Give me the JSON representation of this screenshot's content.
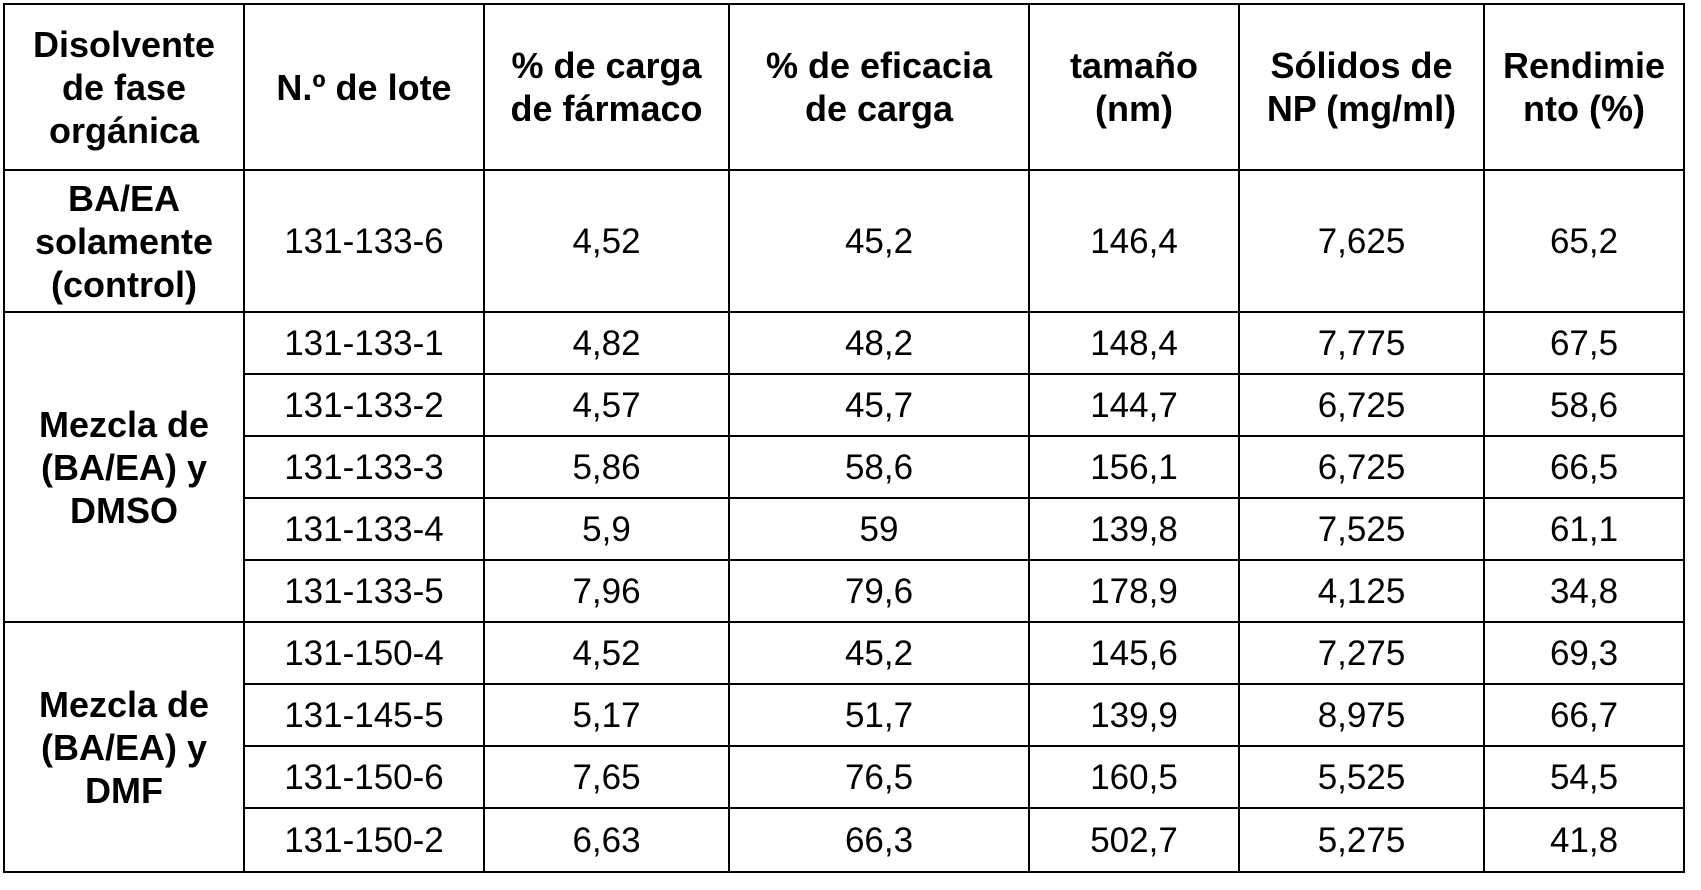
{
  "table": {
    "headers": [
      "Disolvente\nde fase\norgánica",
      "N.º de lote",
      "% de carga\nde fármaco",
      "% de eficacia\nde carga",
      "tamaño\n(nm)",
      "Sólidos de\nNP (mg/ml)",
      "Rendimie\nnto (%)"
    ],
    "groups": [
      {
        "label": "BA/EA\nsolamente\n(control)",
        "rows": [
          [
            "131-133-6",
            "4,52",
            "45,2",
            "146,4",
            "7,625",
            "65,2"
          ]
        ]
      },
      {
        "label": "Mezcla de\n(BA/EA) y\nDMSO",
        "rows": [
          [
            "131-133-1",
            "4,82",
            "48,2",
            "148,4",
            "7,775",
            "67,5"
          ],
          [
            "131-133-2",
            "4,57",
            "45,7",
            "144,7",
            "6,725",
            "58,6"
          ],
          [
            "131-133-3",
            "5,86",
            "58,6",
            "156,1",
            "6,725",
            "66,5"
          ],
          [
            "131-133-4",
            "5,9",
            "59",
            "139,8",
            "7,525",
            "61,1"
          ],
          [
            "131-133-5",
            "7,96",
            "79,6",
            "178,9",
            "4,125",
            "34,8"
          ]
        ]
      },
      {
        "label": "Mezcla de\n(BA/EA) y\nDMF",
        "rows": [
          [
            "131-150-4",
            "4,52",
            "45,2",
            "145,6",
            "7,275",
            "69,3"
          ],
          [
            "131-145-5",
            "5,17",
            "51,7",
            "139,9",
            "8,975",
            "66,7"
          ],
          [
            "131-150-6",
            "7,65",
            "76,5",
            "160,5",
            "5,525",
            "54,5"
          ],
          [
            "131-150-2",
            "6,63",
            "66,3",
            "502,7",
            "5,275",
            "41,8"
          ]
        ]
      }
    ]
  }
}
